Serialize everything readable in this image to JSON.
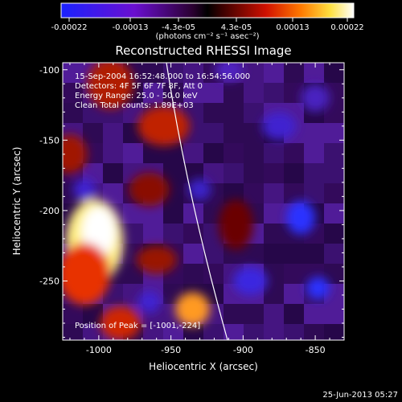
{
  "colorbar": {
    "tick_labels": [
      "-0.00022",
      "-0.00013",
      "-4.3e-05",
      "4.3e-05",
      "0.00013",
      "0.00022"
    ],
    "unit_label": "(photons cm⁻² s⁻¹ asec⁻²)",
    "colors": [
      "#1a22ff",
      "#6a0fd0",
      "#2a0030",
      "#000000",
      "#3a0000",
      "#d01000",
      "#ff7a00",
      "#ffe040",
      "#ffffff"
    ]
  },
  "title": "Reconstructed RHESSI Image",
  "info": {
    "time_range": "15-Sep-2004 16:52:48.000 to 16:54:56.000",
    "detectors": "Detectors: 4F 5F 6F 7F 8F, Att 0",
    "energy": "Energy Range: 25.0 - 50.0 keV",
    "clean": "Clean     Total counts: 1.89E+03",
    "peak": "Position of Peak = [-1001,-224]"
  },
  "axes": {
    "xlabel": "Heliocentric X (arcsec)",
    "ylabel": "Heliocentric Y (arcsec)",
    "x_ticks": [
      "-1000",
      "-950",
      "-900",
      "-850"
    ],
    "y_ticks": [
      "-100",
      "-150",
      "-200",
      "-250"
    ]
  },
  "timestamp": "25-Jun-2013 05:27",
  "blobs": [
    {
      "x": -1003,
      "y": -222,
      "rx": 20,
      "ry": 30,
      "color": "#ffef80"
    },
    {
      "x": -1000,
      "y": -215,
      "rx": 12,
      "ry": 18,
      "color": "#ffffff"
    },
    {
      "x": -1010,
      "y": -245,
      "rx": 18,
      "ry": 22,
      "color": "#e83000"
    },
    {
      "x": -992,
      "y": -110,
      "rx": 16,
      "ry": 18,
      "color": "#b01a00"
    },
    {
      "x": -955,
      "y": -140,
      "rx": 18,
      "ry": 14,
      "color": "#c02000"
    },
    {
      "x": -965,
      "y": -185,
      "rx": 14,
      "ry": 12,
      "color": "#8a1000"
    },
    {
      "x": -935,
      "y": -270,
      "rx": 12,
      "ry": 12,
      "color": "#ff9a20"
    },
    {
      "x": -985,
      "y": -280,
      "rx": 14,
      "ry": 12,
      "color": "#d02800"
    },
    {
      "x": -905,
      "y": -210,
      "rx": 12,
      "ry": 18,
      "color": "#6a0000"
    },
    {
      "x": -1020,
      "y": -160,
      "rx": 12,
      "ry": 14,
      "color": "#a01800"
    },
    {
      "x": -960,
      "y": -235,
      "rx": 14,
      "ry": 10,
      "color": "#9a1400"
    },
    {
      "x": -860,
      "y": -205,
      "rx": 10,
      "ry": 12,
      "color": "#2a30ff"
    },
    {
      "x": -875,
      "y": -140,
      "rx": 12,
      "ry": 10,
      "color": "#4020d0"
    },
    {
      "x": -895,
      "y": -250,
      "rx": 12,
      "ry": 10,
      "color": "#3a26e0"
    },
    {
      "x": -848,
      "y": -255,
      "rx": 8,
      "ry": 8,
      "color": "#2a30ff"
    },
    {
      "x": -850,
      "y": -120,
      "rx": 10,
      "ry": 10,
      "color": "#4a20c0"
    },
    {
      "x": -910,
      "y": -100,
      "rx": 10,
      "ry": 8,
      "color": "#5020c0"
    },
    {
      "x": -1010,
      "y": -185,
      "rx": 8,
      "ry": 8,
      "color": "#4020d0"
    },
    {
      "x": -930,
      "y": -185,
      "rx": 8,
      "ry": 8,
      "color": "#3a20c8"
    },
    {
      "x": -965,
      "y": -265,
      "rx": 8,
      "ry": 8,
      "color": "#4020d0"
    }
  ]
}
